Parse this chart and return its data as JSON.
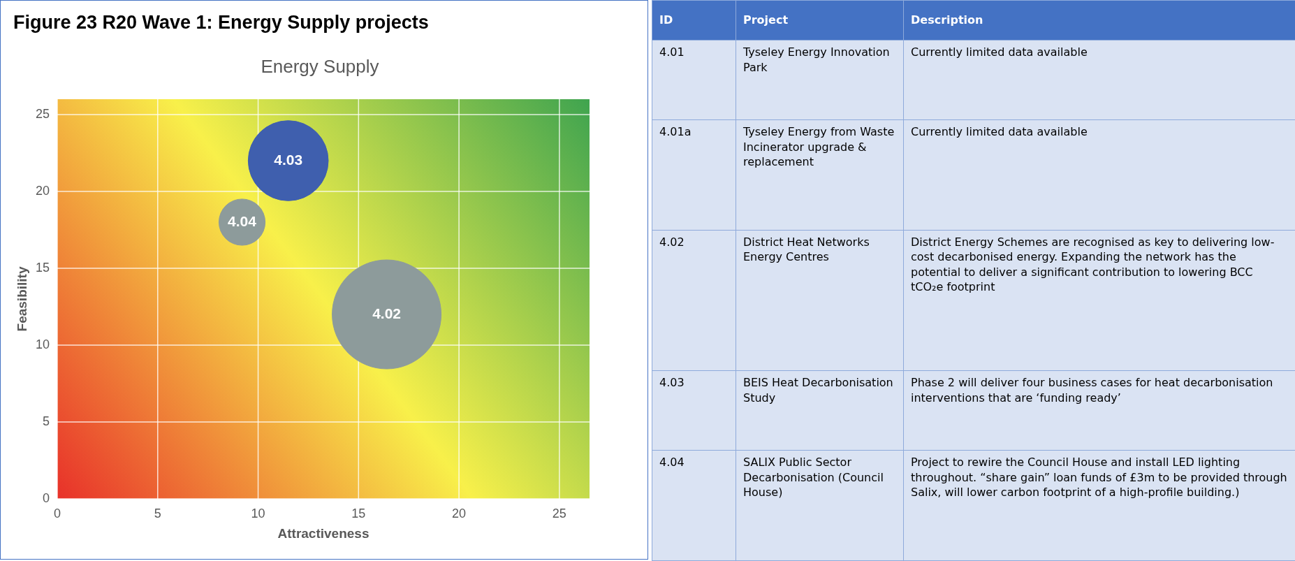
{
  "chart_data": [
    {
      "type": "bubble",
      "title": "Figure 23 R20 Wave 1: Energy Supply projects",
      "subtitle": "Energy Supply",
      "xlabel": "Attractiveness",
      "ylabel": "Feasibility",
      "x": [
        16.4,
        11.5,
        9.2
      ],
      "values": [
        12,
        22,
        18
      ],
      "sizes": [
        1,
        0.54,
        0.18
      ],
      "colors": [
        "#8d9b9b",
        "#3f5fae",
        "#8d9b9b"
      ],
      "annotations": [
        {
          "text": "4.02",
          "x": 16.4,
          "y": 12
        },
        {
          "text": "4.03",
          "x": 11.5,
          "y": 22
        },
        {
          "text": "4.04",
          "x": 9.2,
          "y": 18
        }
      ],
      "xlim": [
        0,
        26.5
      ],
      "ylim": [
        0,
        26
      ],
      "xticks": [
        0,
        5,
        10,
        15,
        20,
        25
      ],
      "yticks": [
        0,
        5,
        10,
        15,
        20,
        25
      ],
      "grid": true
    },
    {
      "type": "other",
      "categories": [
        "ID",
        "Project",
        "Description"
      ],
      "annotations": [
        "4.01",
        "Tyseley Energy Innovation Park",
        "Currently limited data available",
        "4.01a",
        "Tyseley Energy from Waste Incinerator upgrade & replacement",
        "Currently limited data available",
        "4.02",
        "District Heat Networks Energy Centres",
        "District Energy Schemes are recognised as key to delivering low-cost decarbonised energy. Expanding the network has the potential to deliver a significant contribution to lowering BCC tCO₂e footprint",
        "4.03",
        "BEIS Heat Decarbonisation Study",
        "Phase 2 will deliver four business cases for heat decarbonisation interventions that are ‘funding ready’",
        "4.04",
        "SALIX Public Sector Decarbonisation (Council House)",
        " Project to rewire the Council House and install LED lighting throughout.  “share gain” loan funds of £3m to be provided through Salix, will lower carbon footprint of a high-profile building.)"
      ],
      "colors": [
        "#4472c4",
        "#4472c4",
        "#4472c4",
        "#dae3f3",
        "#dae3f3",
        "#dae3f3",
        "#dae3f3",
        "#dae3f3",
        "#dae3f3",
        "#dae3f3",
        "#dae3f3",
        "#dae3f3",
        "#dae3f3",
        "#dae3f3",
        "#dae3f3",
        "#dae3f3",
        "#dae3f3",
        "#dae3f3"
      ]
    }
  ]
}
